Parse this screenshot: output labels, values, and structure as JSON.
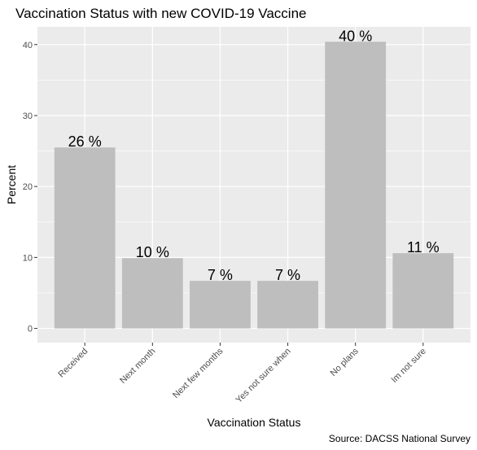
{
  "chart_data": {
    "type": "bar",
    "title": "Vaccination Status with new COVID-19 Vaccine",
    "xlabel": "Vaccination Status",
    "ylabel": "Percent",
    "caption": "Source: DACSS National Survey",
    "categories": [
      "Received",
      "Next month",
      "Next few months",
      "Yes not sure when",
      "No plans",
      "Im not sure"
    ],
    "values": [
      25.5,
      9.9,
      6.7,
      6.7,
      40.4,
      10.6
    ],
    "data_labels": [
      "26 %",
      "10 %",
      "7 %",
      "7 %",
      "40 %",
      "11 %"
    ],
    "ylim": [
      -2,
      42.5
    ],
    "yticks": [
      0,
      10,
      20,
      30,
      40
    ],
    "grid": true,
    "bar_color": "#bebebe",
    "panel_color": "#ebebeb",
    "grid_color": "#ffffff"
  }
}
